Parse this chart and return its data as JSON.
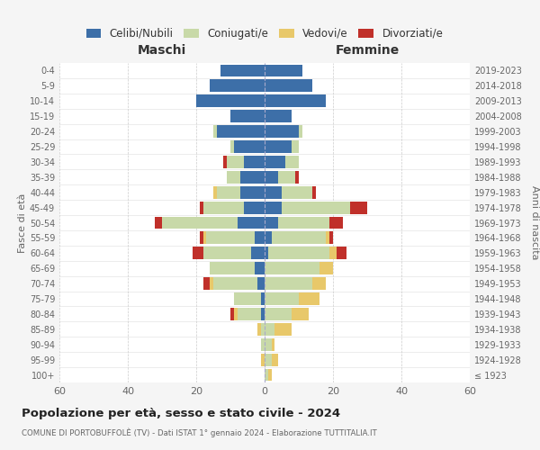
{
  "age_groups": [
    "100+",
    "95-99",
    "90-94",
    "85-89",
    "80-84",
    "75-79",
    "70-74",
    "65-69",
    "60-64",
    "55-59",
    "50-54",
    "45-49",
    "40-44",
    "35-39",
    "30-34",
    "25-29",
    "20-24",
    "15-19",
    "10-14",
    "5-9",
    "0-4"
  ],
  "birth_years": [
    "≤ 1923",
    "1924-1928",
    "1929-1933",
    "1934-1938",
    "1939-1943",
    "1944-1948",
    "1949-1953",
    "1954-1958",
    "1959-1963",
    "1964-1968",
    "1969-1973",
    "1974-1978",
    "1979-1983",
    "1984-1988",
    "1989-1993",
    "1994-1998",
    "1999-2003",
    "2004-2008",
    "2009-2013",
    "2014-2018",
    "2019-2023"
  ],
  "colors": {
    "celibi": "#3d6fa8",
    "coniugati": "#c8d9a8",
    "vedovi": "#e8c86a",
    "divorziati": "#c0302a"
  },
  "males": {
    "celibi": [
      0,
      0,
      0,
      0,
      1,
      1,
      2,
      3,
      4,
      3,
      8,
      6,
      7,
      7,
      6,
      9,
      14,
      10,
      20,
      16,
      13
    ],
    "coniugati": [
      0,
      0,
      1,
      1,
      7,
      8,
      13,
      13,
      14,
      14,
      22,
      12,
      7,
      4,
      5,
      1,
      1,
      0,
      0,
      0,
      0
    ],
    "vedovi": [
      0,
      1,
      0,
      1,
      1,
      0,
      1,
      0,
      0,
      1,
      0,
      0,
      1,
      0,
      0,
      0,
      0,
      0,
      0,
      0,
      0
    ],
    "divorziati": [
      0,
      0,
      0,
      0,
      1,
      0,
      2,
      0,
      3,
      1,
      2,
      1,
      0,
      0,
      1,
      0,
      0,
      0,
      0,
      0,
      0
    ]
  },
  "females": {
    "celibi": [
      0,
      0,
      0,
      0,
      0,
      0,
      0,
      0,
      1,
      2,
      4,
      5,
      5,
      4,
      6,
      8,
      10,
      8,
      18,
      14,
      11
    ],
    "coniugati": [
      1,
      2,
      2,
      3,
      8,
      10,
      14,
      16,
      18,
      16,
      15,
      20,
      9,
      5,
      4,
      2,
      1,
      0,
      0,
      0,
      0
    ],
    "vedovi": [
      1,
      2,
      1,
      5,
      5,
      6,
      4,
      4,
      2,
      1,
      0,
      0,
      0,
      0,
      0,
      0,
      0,
      0,
      0,
      0,
      0
    ],
    "divorziati": [
      0,
      0,
      0,
      0,
      0,
      0,
      0,
      0,
      3,
      1,
      4,
      5,
      1,
      1,
      0,
      0,
      0,
      0,
      0,
      0,
      0
    ]
  },
  "xlim": 60,
  "title": "Popolazione per età, sesso e stato civile - 2024",
  "subtitle": "COMUNE DI PORTOBUFFOLÈ (TV) - Dati ISTAT 1° gennaio 2024 - Elaborazione TUTTITALIA.IT",
  "xlabel_left": "Maschi",
  "xlabel_right": "Femmine",
  "ylabel_left": "Fasce di età",
  "ylabel_right": "Anni di nascita",
  "legend_labels": [
    "Celibi/Nubili",
    "Coniugati/e",
    "Vedovi/e",
    "Divorziati/e"
  ],
  "bg_color": "#f5f5f5",
  "plot_bg": "#ffffff"
}
